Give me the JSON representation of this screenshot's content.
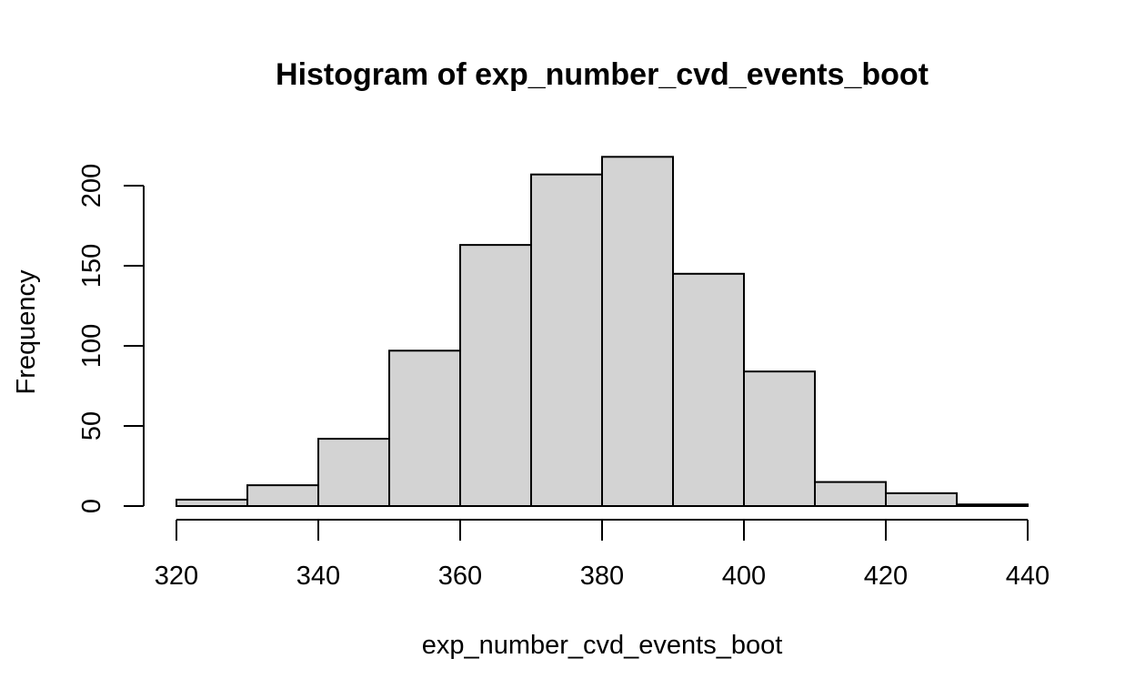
{
  "chart_data": {
    "type": "bar",
    "title": "Histogram of exp_number_cvd_events_boot",
    "xlabel": "exp_number_cvd_events_boot",
    "ylabel": "Frequency",
    "bins": [
      {
        "start": 320,
        "end": 330,
        "value": 4
      },
      {
        "start": 330,
        "end": 340,
        "value": 13
      },
      {
        "start": 340,
        "end": 350,
        "value": 42
      },
      {
        "start": 350,
        "end": 360,
        "value": 97
      },
      {
        "start": 360,
        "end": 370,
        "value": 163
      },
      {
        "start": 370,
        "end": 380,
        "value": 207
      },
      {
        "start": 380,
        "end": 390,
        "value": 218
      },
      {
        "start": 390,
        "end": 400,
        "value": 145
      },
      {
        "start": 400,
        "end": 410,
        "value": 84
      },
      {
        "start": 410,
        "end": 420,
        "value": 15
      },
      {
        "start": 420,
        "end": 430,
        "value": 8
      },
      {
        "start": 430,
        "end": 440,
        "value": 1
      }
    ],
    "xlim": [
      320,
      440
    ],
    "x_ticks": [
      320,
      340,
      360,
      380,
      400,
      420,
      440
    ],
    "ylim": [
      0,
      200
    ],
    "y_ticks": [
      0,
      50,
      100,
      150,
      200
    ],
    "grid": false,
    "colors": {
      "bar_fill": "#d3d3d3",
      "bar_stroke": "#000000"
    }
  }
}
